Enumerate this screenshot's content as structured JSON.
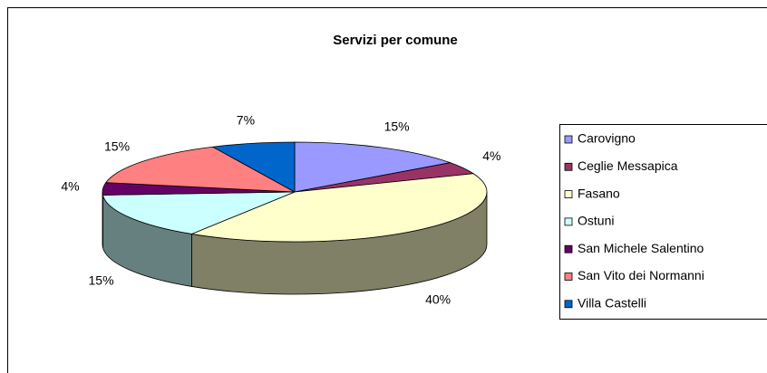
{
  "chart_data": {
    "type": "pie",
    "title": "Servizi per comune",
    "categories": [
      "Carovigno",
      "Ceglie Messapica",
      "Fasano",
      "Ostuni",
      "San Michele Salentino",
      "San Vito dei Normanni",
      "Villa Castelli"
    ],
    "values": [
      15,
      4,
      40,
      15,
      4,
      15,
      7
    ],
    "value_labels": [
      "15%",
      "4%",
      "40%",
      "15%",
      "4%",
      "15%",
      "7%"
    ],
    "colors": [
      "#9999ff",
      "#993366",
      "#ffffcc",
      "#ccffff",
      "#660066",
      "#ff8080",
      "#0066cc"
    ],
    "legend": "right"
  }
}
